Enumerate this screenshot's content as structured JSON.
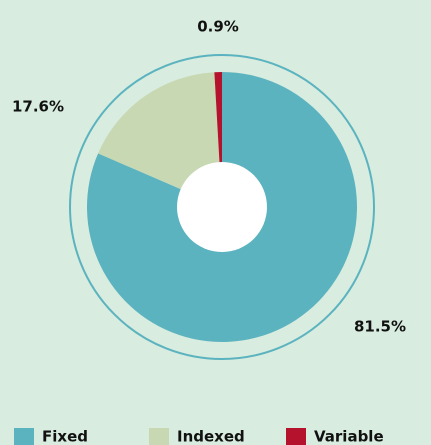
{
  "chart_data": {
    "type": "donut",
    "categories": [
      "Fixed",
      "Indexed",
      "Variable"
    ],
    "values": [
      81.5,
      17.6,
      0.9
    ],
    "value_labels": [
      "81.5%",
      "17.6%",
      "0.9%"
    ],
    "colors": [
      "#5bb3bf",
      "#c7d8b3",
      "#b5122d"
    ],
    "legend": "bottom"
  }
}
